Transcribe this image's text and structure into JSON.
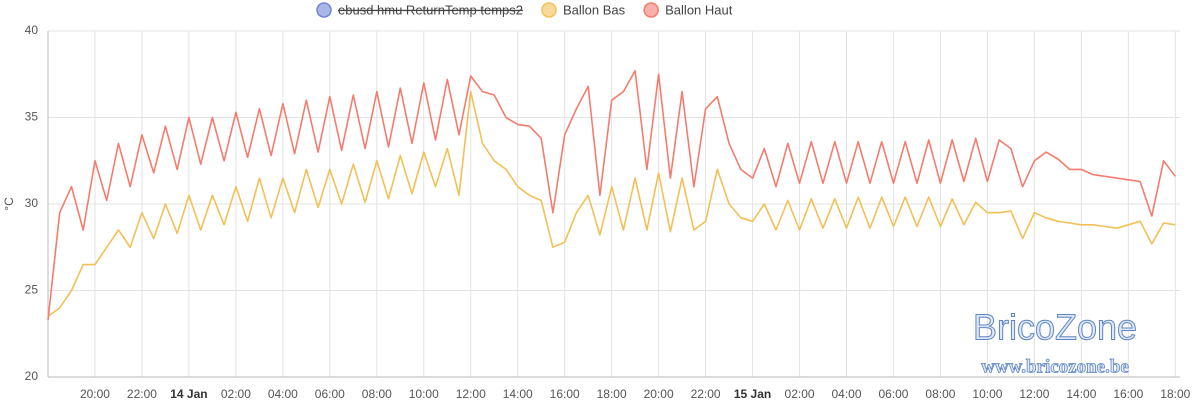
{
  "chart_data": {
    "type": "line",
    "y_label": "°C",
    "watermark": {
      "title": "BricoZone",
      "url": "www.bricozone.be"
    },
    "xlim": [
      18,
      66.2
    ],
    "ylim": [
      20,
      40
    ],
    "yticks": [
      20,
      25,
      30,
      35,
      40
    ],
    "xticks": [
      {
        "value": 20,
        "label": "20:00"
      },
      {
        "value": 22,
        "label": "22:00"
      },
      {
        "value": 24,
        "label": "14 Jan"
      },
      {
        "value": 26,
        "label": "02:00"
      },
      {
        "value": 28,
        "label": "04:00"
      },
      {
        "value": 30,
        "label": "06:00"
      },
      {
        "value": 32,
        "label": "08:00"
      },
      {
        "value": 34,
        "label": "10:00"
      },
      {
        "value": 36,
        "label": "12:00"
      },
      {
        "value": 38,
        "label": "14:00"
      },
      {
        "value": 40,
        "label": "16:00"
      },
      {
        "value": 42,
        "label": "18:00"
      },
      {
        "value": 44,
        "label": "20:00"
      },
      {
        "value": 46,
        "label": "22:00"
      },
      {
        "value": 48,
        "label": "15 Jan"
      },
      {
        "value": 50,
        "label": "02:00"
      },
      {
        "value": 52,
        "label": "04:00"
      },
      {
        "value": 54,
        "label": "06:00"
      },
      {
        "value": 56,
        "label": "08:00"
      },
      {
        "value": 58,
        "label": "10:00"
      },
      {
        "value": 60,
        "label": "12:00"
      },
      {
        "value": 62,
        "label": "14:00"
      },
      {
        "value": 64,
        "label": "16:00"
      },
      {
        "value": 66,
        "label": "18:00"
      }
    ],
    "bold_ticks": [
      "14 Jan",
      "15 Jan"
    ],
    "grid": true,
    "x": [
      18.0,
      18.5,
      19.0,
      19.5,
      20.0,
      20.5,
      21.0,
      21.5,
      22.0,
      22.5,
      23.0,
      23.5,
      24.0,
      24.5,
      25.0,
      25.5,
      26.0,
      26.5,
      27.0,
      27.5,
      28.0,
      28.5,
      29.0,
      29.5,
      30.0,
      30.5,
      31.0,
      31.5,
      32.0,
      32.5,
      33.0,
      33.5,
      34.0,
      34.5,
      35.0,
      35.5,
      36.0,
      36.5,
      37.0,
      37.5,
      38.0,
      38.5,
      39.0,
      39.5,
      40.0,
      40.5,
      41.0,
      41.5,
      42.0,
      42.5,
      43.0,
      43.5,
      44.0,
      44.5,
      45.0,
      45.5,
      46.0,
      46.5,
      47.0,
      47.5,
      48.0,
      48.5,
      49.0,
      49.5,
      50.0,
      50.5,
      51.0,
      51.5,
      52.0,
      52.5,
      53.0,
      53.5,
      54.0,
      54.5,
      55.0,
      55.5,
      56.0,
      56.5,
      57.0,
      57.5,
      58.0,
      58.5,
      59.0,
      59.5,
      60.0,
      60.5,
      61.0,
      61.5,
      62.0,
      62.5,
      63.0,
      63.5,
      64.0,
      64.5,
      65.0,
      65.5,
      66.0
    ],
    "series": [
      {
        "name": "ebusd hmu ReturnTemp temps2",
        "color": "#7186d8",
        "hidden": true,
        "values": [
          null,
          null,
          null,
          null,
          null,
          null,
          null,
          null,
          null,
          null,
          null,
          null,
          null,
          null,
          null,
          null,
          null,
          null,
          null,
          null,
          null,
          null,
          null,
          null,
          null,
          null,
          null,
          null,
          null,
          null,
          null,
          null,
          null,
          null,
          null,
          null,
          null,
          null,
          null,
          null,
          null,
          null,
          null,
          null,
          null,
          null,
          null,
          null,
          null,
          null,
          null,
          null,
          null,
          null,
          null,
          null,
          null,
          null,
          null,
          null,
          null,
          null,
          null,
          null,
          null,
          null,
          null,
          null,
          null,
          null,
          null,
          null,
          null,
          null,
          null,
          null,
          null,
          null,
          null,
          null,
          null,
          null,
          null,
          null,
          null,
          null,
          null,
          null,
          null,
          null,
          null,
          null,
          null,
          null,
          null,
          null,
          null
        ]
      },
      {
        "name": "Ballon Bas",
        "color": "#f2c057",
        "hidden": false,
        "values": [
          23.5,
          24.0,
          25.0,
          26.5,
          26.5,
          27.5,
          28.5,
          27.5,
          29.5,
          28.0,
          30.0,
          28.3,
          30.5,
          28.5,
          30.5,
          28.8,
          31.0,
          29.0,
          31.5,
          29.2,
          31.5,
          29.5,
          32.0,
          29.8,
          32.0,
          30.0,
          32.3,
          30.1,
          32.5,
          30.3,
          32.8,
          30.6,
          33.0,
          31.0,
          33.2,
          30.5,
          36.5,
          33.5,
          32.5,
          32.0,
          31.0,
          30.5,
          30.2,
          27.5,
          27.8,
          29.5,
          30.5,
          28.2,
          31.0,
          28.5,
          31.5,
          28.5,
          31.8,
          28.4,
          31.5,
          28.5,
          29.0,
          32.0,
          30.0,
          29.2,
          29.0,
          30.0,
          28.5,
          30.2,
          28.5,
          30.3,
          28.6,
          30.3,
          28.6,
          30.4,
          28.6,
          30.4,
          28.7,
          30.4,
          28.7,
          30.4,
          28.7,
          30.3,
          28.8,
          30.1,
          29.5,
          29.5,
          29.6,
          28.0,
          29.5,
          29.2,
          29.0,
          28.9,
          28.8,
          28.8,
          28.7,
          28.6,
          28.8,
          29.0,
          27.7,
          28.9,
          28.8
        ]
      },
      {
        "name": "Ballon Haut",
        "color": "#f47c6f",
        "hidden": false,
        "values": [
          23.3,
          29.5,
          31.0,
          28.5,
          32.5,
          30.2,
          33.5,
          31.0,
          34.0,
          31.8,
          34.5,
          32.0,
          35.0,
          32.3,
          35.0,
          32.5,
          35.3,
          32.7,
          35.5,
          32.8,
          35.8,
          32.9,
          36.0,
          33.0,
          36.2,
          33.1,
          36.3,
          33.2,
          36.5,
          33.3,
          36.7,
          33.5,
          37.0,
          33.7,
          37.2,
          34.0,
          37.4,
          36.5,
          36.3,
          35.0,
          34.6,
          34.5,
          33.8,
          29.5,
          34.0,
          35.5,
          36.8,
          30.5,
          36.0,
          36.5,
          37.7,
          32.0,
          37.5,
          31.5,
          36.5,
          31.0,
          35.5,
          36.2,
          33.5,
          32.0,
          31.5,
          33.2,
          31.0,
          33.5,
          31.2,
          33.6,
          31.2,
          33.6,
          31.2,
          33.6,
          31.2,
          33.6,
          31.2,
          33.6,
          31.2,
          33.7,
          31.2,
          33.7,
          31.3,
          33.8,
          31.3,
          33.7,
          33.2,
          31.0,
          32.5,
          33.0,
          32.6,
          32.0,
          32.0,
          31.7,
          31.6,
          31.5,
          31.4,
          31.3,
          29.3,
          32.5,
          31.6
        ]
      }
    ]
  }
}
